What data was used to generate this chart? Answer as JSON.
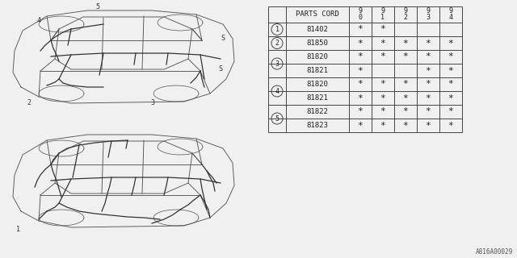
{
  "diagram_id": "A816A00029",
  "bg_color": "#f0f0f0",
  "line_color": "#444444",
  "text_color": "#222222",
  "table": {
    "rows": [
      {
        "ref": "1",
        "part": "81402",
        "marks": [
          true,
          true,
          false,
          false,
          false
        ]
      },
      {
        "ref": "2",
        "part": "81850",
        "marks": [
          true,
          true,
          true,
          true,
          true
        ]
      },
      {
        "ref": "3",
        "part": "81820",
        "marks": [
          true,
          true,
          true,
          true,
          true
        ]
      },
      {
        "ref": "3",
        "part": "81821",
        "marks": [
          true,
          false,
          false,
          true,
          true
        ]
      },
      {
        "ref": "4",
        "part": "81820",
        "marks": [
          true,
          true,
          true,
          true,
          true
        ]
      },
      {
        "ref": "4",
        "part": "81821",
        "marks": [
          true,
          true,
          true,
          true,
          true
        ]
      },
      {
        "ref": "5",
        "part": "81822",
        "marks": [
          true,
          true,
          true,
          true,
          true
        ]
      },
      {
        "ref": "5",
        "part": "81823",
        "marks": [
          true,
          true,
          true,
          true,
          true
        ]
      }
    ]
  }
}
